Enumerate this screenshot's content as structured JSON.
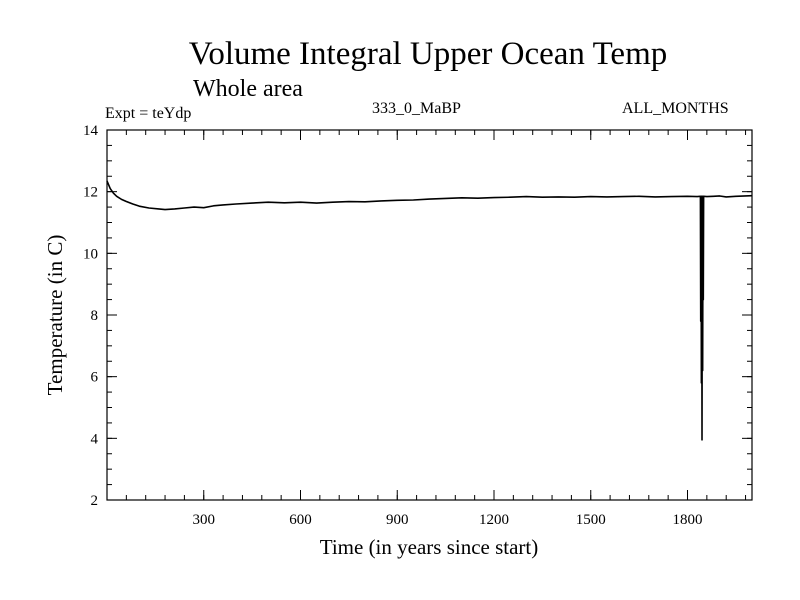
{
  "chart_data": {
    "type": "line",
    "title": "Volume Integral Upper Ocean Temp",
    "subtitle": "Whole area",
    "left_label": "Expt = teYdp",
    "center_label": "333_0_MaBP",
    "right_label": "ALL_MONTHS",
    "xlabel": "Time (in years since start)",
    "ylabel": "Temperature (in C)",
    "xlim": [
      0,
      2000
    ],
    "ylim": [
      2,
      14
    ],
    "x_ticks": [
      300,
      600,
      900,
      1200,
      1500,
      1800
    ],
    "y_ticks": [
      2,
      4,
      6,
      8,
      10,
      12,
      14
    ],
    "x_minor_step": 60,
    "y_minor_step": 0.5,
    "series": [
      {
        "name": "Volume integral upper ocean temperature",
        "x": [
          0,
          10,
          20,
          30,
          45,
          60,
          80,
          100,
          130,
          160,
          180,
          210,
          240,
          270,
          300,
          330,
          360,
          400,
          450,
          500,
          550,
          600,
          650,
          700,
          750,
          800,
          850,
          900,
          950,
          1000,
          1050,
          1100,
          1150,
          1200,
          1250,
          1300,
          1350,
          1400,
          1450,
          1500,
          1550,
          1600,
          1650,
          1700,
          1750,
          1800,
          1830,
          1840,
          1841,
          1842,
          1843,
          1844,
          1845,
          1846,
          1847,
          1848,
          1849,
          1850,
          1860,
          1880,
          1900,
          1920,
          1950,
          1980,
          2000
        ],
        "y": [
          12.35,
          12.1,
          11.95,
          11.85,
          11.75,
          11.68,
          11.6,
          11.53,
          11.47,
          11.44,
          11.42,
          11.44,
          11.47,
          11.5,
          11.48,
          11.54,
          11.57,
          11.6,
          11.63,
          11.66,
          11.64,
          11.66,
          11.63,
          11.66,
          11.68,
          11.67,
          11.7,
          11.72,
          11.73,
          11.76,
          11.78,
          11.8,
          11.79,
          11.81,
          11.82,
          11.84,
          11.82,
          11.83,
          11.82,
          11.84,
          11.83,
          11.84,
          11.85,
          11.83,
          11.84,
          11.85,
          11.84,
          11.85,
          7.8,
          11.85,
          5.8,
          11.85,
          3.95,
          11.85,
          6.2,
          11.85,
          8.5,
          11.85,
          11.84,
          11.85,
          11.86,
          11.83,
          11.85,
          11.86,
          11.87
        ]
      }
    ]
  }
}
